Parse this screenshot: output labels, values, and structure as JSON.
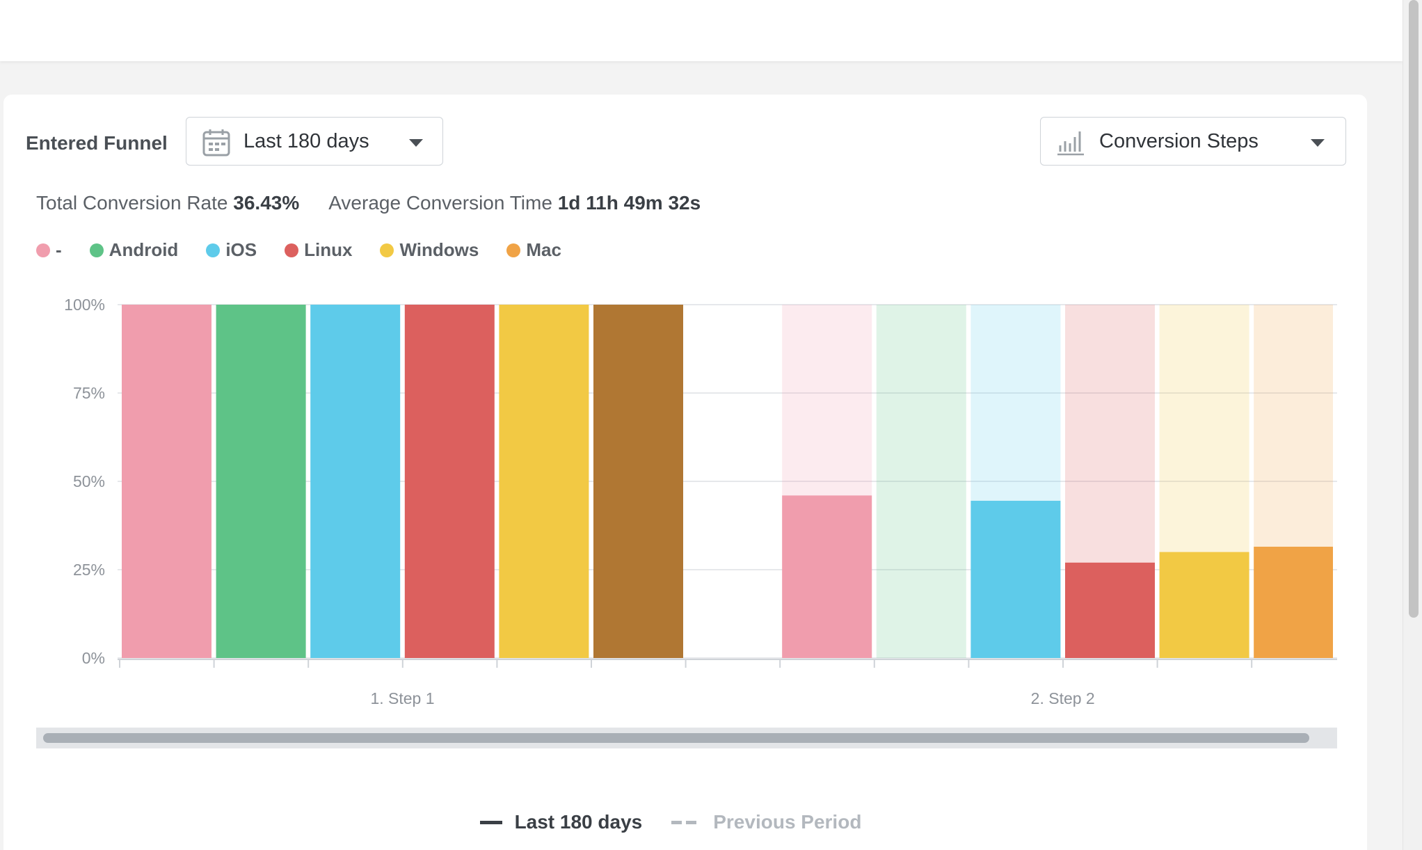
{
  "header": {},
  "filters": {
    "funnel_label": "Entered Funnel",
    "date_range": "Last 180 days",
    "view_mode": "Conversion Steps"
  },
  "stats": {
    "total_conversion_label": "Total Conversion Rate",
    "total_conversion_value": "36.43%",
    "avg_time_label": "Average Conversion Time",
    "avg_time_value": "1d 11h 49m 32s"
  },
  "chart_data": {
    "type": "bar",
    "categories": [
      "1. Step 1",
      "2. Step 2"
    ],
    "series": [
      {
        "name": "-",
        "color": "#f09dad",
        "values": [
          100,
          46
        ]
      },
      {
        "name": "Android",
        "color": "#5ec387",
        "values": [
          100,
          0
        ]
      },
      {
        "name": "iOS",
        "color": "#5ecbea",
        "values": [
          100,
          44.5
        ]
      },
      {
        "name": "Linux",
        "color": "#dc605e",
        "values": [
          100,
          27
        ]
      },
      {
        "name": "Windows",
        "color": "#f2c944",
        "values": [
          100,
          30
        ]
      },
      {
        "name": "Mac",
        "color": "#f0a346",
        "values": [
          100,
          31.5
        ]
      }
    ],
    "step1_sixth_bar_color": "#b07733",
    "ylim": [
      0,
      100
    ],
    "yticks": [
      "0%",
      "25%",
      "50%",
      "75%",
      "100%"
    ],
    "grid": true,
    "legend_position": "top-left"
  },
  "bottom_legend": {
    "current": "Last 180 days",
    "previous": "Previous Period"
  }
}
